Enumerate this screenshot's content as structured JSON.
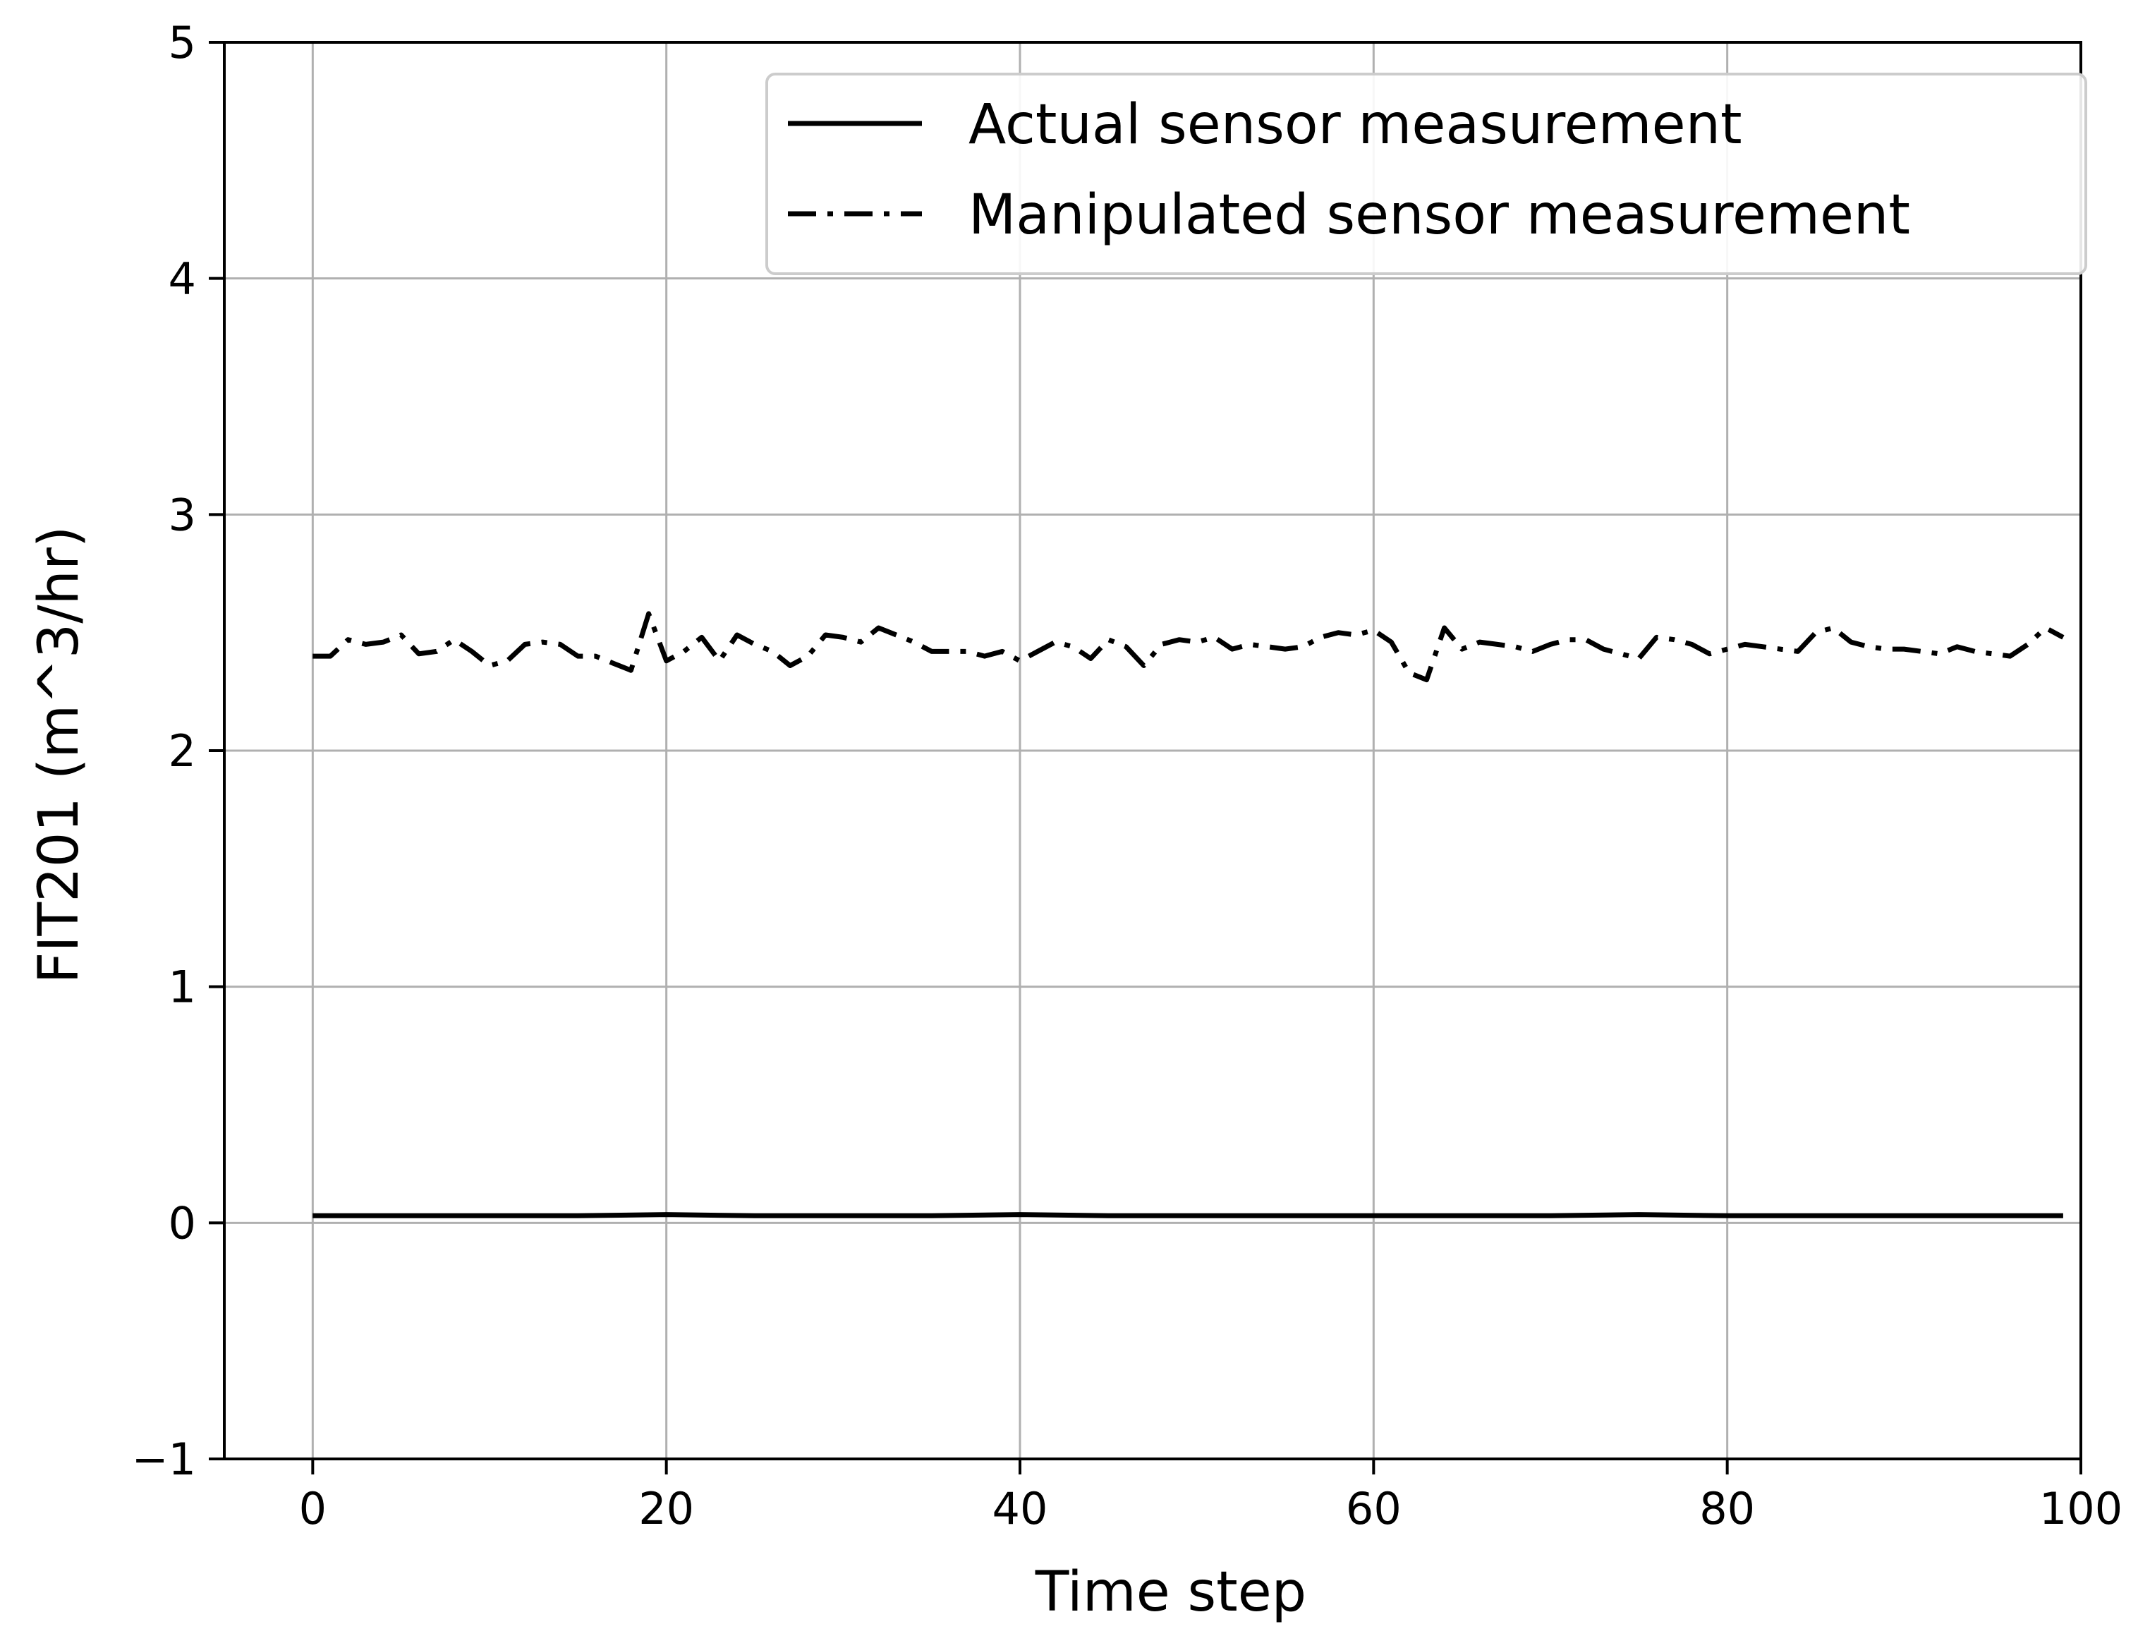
{
  "chart_data": {
    "type": "line",
    "title": "",
    "xlabel": "Time step",
    "ylabel": "FIT201 (m^3/hr)",
    "xlim": [
      -5,
      100
    ],
    "ylim": [
      -1,
      5
    ],
    "xticks": [
      0,
      20,
      40,
      60,
      80,
      100
    ],
    "yticks": [
      -1,
      0,
      1,
      2,
      3,
      4,
      5
    ],
    "xtick_labels": [
      "0",
      "20",
      "40",
      "60",
      "80",
      "100"
    ],
    "ytick_labels": [
      "−1",
      "0",
      "1",
      "2",
      "3",
      "4",
      "5"
    ],
    "grid": true,
    "legend_position": "top-right",
    "series": [
      {
        "name": "Actual sensor measurement",
        "style": "solid",
        "color": "#000000",
        "x": [
          0,
          5,
          10,
          15,
          20,
          25,
          30,
          35,
          40,
          45,
          50,
          55,
          60,
          65,
          70,
          75,
          80,
          85,
          90,
          95,
          99
        ],
        "values": [
          0.03,
          0.03,
          0.03,
          0.03,
          0.035,
          0.03,
          0.03,
          0.03,
          0.035,
          0.03,
          0.03,
          0.03,
          0.03,
          0.03,
          0.03,
          0.035,
          0.03,
          0.03,
          0.03,
          0.03,
          0.03
        ]
      },
      {
        "name": "Manipulated sensor measurement",
        "style": "dashdot",
        "color": "#000000",
        "x": [
          0,
          1,
          2,
          3,
          4,
          5,
          6,
          7,
          8,
          9,
          10,
          11,
          12,
          13,
          14,
          15,
          16,
          17,
          18,
          19,
          20,
          21,
          22,
          23,
          24,
          25,
          26,
          27,
          28,
          29,
          30,
          31,
          32,
          33,
          34,
          35,
          36,
          37,
          38,
          39,
          40,
          41,
          42,
          43,
          44,
          45,
          46,
          47,
          48,
          49,
          50,
          51,
          52,
          53,
          54,
          55,
          56,
          57,
          58,
          59,
          60,
          61,
          62,
          63,
          64,
          65,
          66,
          67,
          68,
          69,
          70,
          71,
          72,
          73,
          74,
          75,
          76,
          77,
          78,
          79,
          80,
          81,
          82,
          83,
          84,
          85,
          86,
          87,
          88,
          89,
          90,
          91,
          92,
          93,
          94,
          95,
          96,
          97,
          98,
          99
        ],
        "values": [
          2.4,
          2.4,
          2.47,
          2.45,
          2.46,
          2.49,
          2.41,
          2.42,
          2.47,
          2.42,
          2.36,
          2.38,
          2.45,
          2.46,
          2.45,
          2.4,
          2.4,
          2.37,
          2.34,
          2.58,
          2.38,
          2.42,
          2.48,
          2.38,
          2.49,
          2.45,
          2.42,
          2.36,
          2.4,
          2.49,
          2.48,
          2.46,
          2.52,
          2.49,
          2.46,
          2.42,
          2.42,
          2.42,
          2.4,
          2.42,
          2.38,
          2.42,
          2.46,
          2.44,
          2.39,
          2.47,
          2.44,
          2.36,
          2.45,
          2.47,
          2.46,
          2.48,
          2.43,
          2.45,
          2.44,
          2.43,
          2.44,
          2.48,
          2.5,
          2.49,
          2.51,
          2.46,
          2.33,
          2.3,
          2.52,
          2.43,
          2.46,
          2.45,
          2.44,
          2.42,
          2.45,
          2.47,
          2.47,
          2.43,
          2.41,
          2.39,
          2.48,
          2.47,
          2.45,
          2.41,
          2.43,
          2.45,
          2.44,
          2.43,
          2.42,
          2.5,
          2.52,
          2.46,
          2.44,
          2.43,
          2.43,
          2.42,
          2.41,
          2.44,
          2.42,
          2.41,
          2.4,
          2.45,
          2.52,
          2.48
        ]
      }
    ]
  }
}
